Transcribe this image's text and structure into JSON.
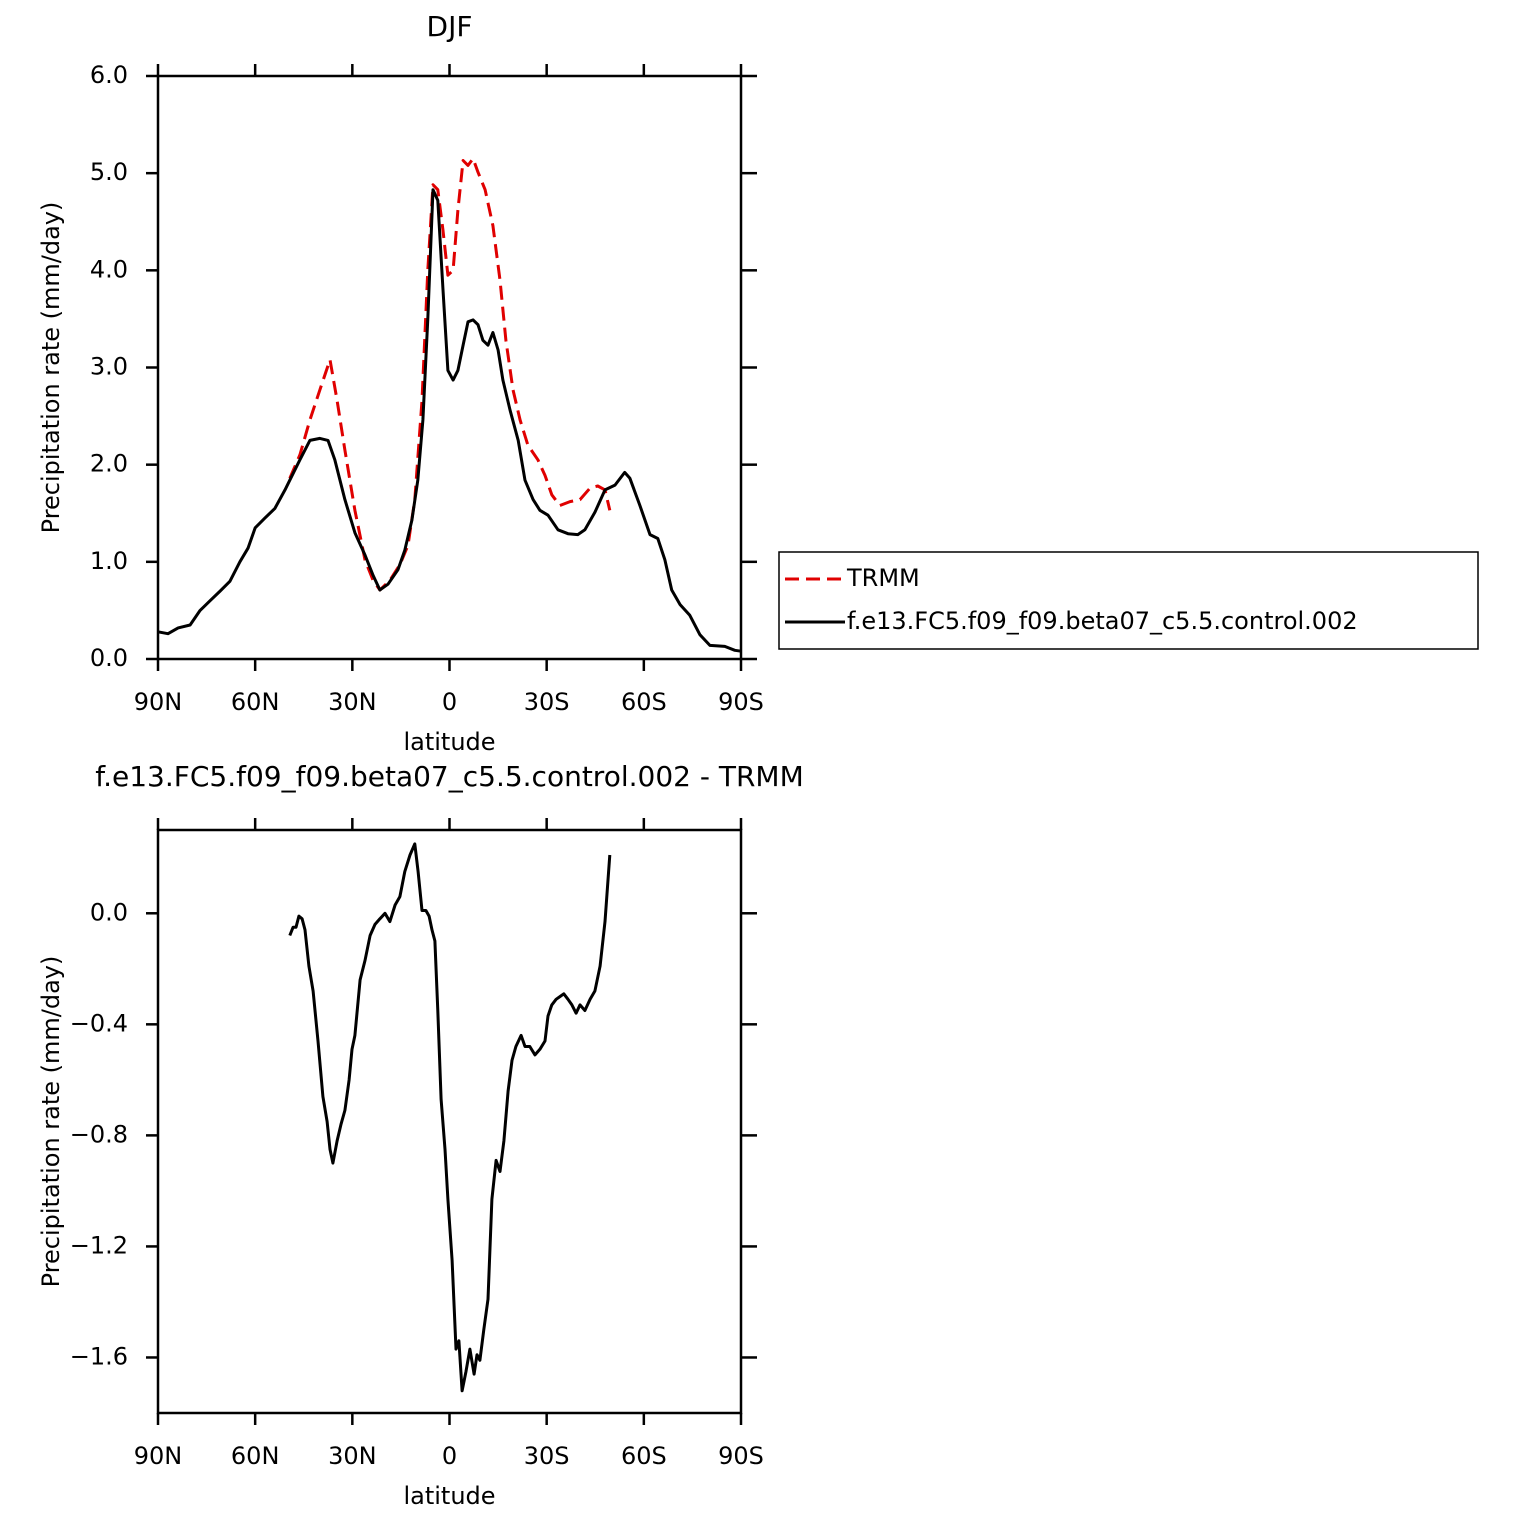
{
  "chart_data": [
    {
      "type": "line",
      "title": "DJF",
      "xlabel": "latitude",
      "ylabel": "Precipitation rate (mm/day)",
      "xlim": [
        90,
        -90
      ],
      "xticks": [
        {
          "value": 90,
          "label": "90N"
        },
        {
          "value": 60,
          "label": "60N"
        },
        {
          "value": 30,
          "label": "30N"
        },
        0,
        {
          "value": -30,
          "label": "30S"
        },
        {
          "value": -60,
          "label": "60S"
        },
        {
          "value": -90,
          "label": "90S"
        }
      ],
      "ylim": [
        0,
        6
      ],
      "yticks": [
        {
          "value": 0,
          "label": "0.0"
        },
        {
          "value": 1,
          "label": "1.0"
        },
        {
          "value": 2,
          "label": "2.0"
        },
        {
          "value": 3,
          "label": "3.0"
        },
        {
          "value": 4,
          "label": "4.0"
        },
        {
          "value": 5,
          "label": "5.0"
        },
        {
          "value": 6,
          "label": "6.0"
        }
      ],
      "legend": "right",
      "series": [
        {
          "name": "TRMM",
          "color": "#e00000",
          "dashed": true,
          "x": [
            49.3,
            46.2,
            43.1,
            40.0,
            36.9,
            34.7,
            32.3,
            29.2,
            26.1,
            23.6,
            21.5,
            18.4,
            15.3,
            12.8,
            10.7,
            8.5,
            6.7,
            5.1,
            3.6,
            2.0,
            0.5,
            -1.1,
            -2.6,
            -4.2,
            -5.7,
            -7.3,
            -8.8,
            -11.0,
            -13.4,
            -15.6,
            -17.4,
            -19.6,
            -21.8,
            -24.2,
            -27.3,
            -29.5,
            -31.6,
            -34.1,
            -37.2,
            -40.3,
            -43.4,
            -45.8,
            -48.0,
            -49.5
          ],
          "values": [
            1.86,
            2.1,
            2.46,
            2.77,
            3.08,
            2.66,
            2.15,
            1.53,
            1.02,
            0.81,
            0.71,
            0.81,
            0.97,
            1.17,
            1.64,
            2.66,
            4.0,
            4.88,
            4.83,
            4.41,
            3.95,
            4.0,
            4.62,
            5.13,
            5.08,
            5.15,
            5.01,
            4.83,
            4.46,
            3.9,
            3.28,
            2.77,
            2.46,
            2.2,
            2.05,
            1.89,
            1.69,
            1.58,
            1.62,
            1.64,
            1.76,
            1.78,
            1.74,
            1.53
          ]
        },
        {
          "name": "f.e13.FC5.f09_f09.beta07_c5.5.control.002",
          "color": "#000000",
          "dashed": false,
          "x": [
            90,
            86.9,
            83.8,
            80.1,
            77.0,
            73.9,
            70.8,
            67.8,
            64.7,
            62.2,
            60.0,
            57.0,
            53.9,
            50.8,
            49.3,
            46.2,
            43.1,
            40.0,
            37.5,
            35.4,
            32.3,
            29.2,
            26.1,
            23.6,
            21.5,
            19.0,
            15.9,
            13.8,
            11.6,
            9.8,
            8.2,
            6.7,
            5.1,
            3.6,
            2.0,
            0.5,
            -1.1,
            -2.6,
            -4.2,
            -5.7,
            -7.3,
            -8.8,
            -10.3,
            -11.9,
            -13.4,
            -15.0,
            -16.5,
            -18.7,
            -21.2,
            -23.3,
            -25.8,
            -27.9,
            -30.4,
            -33.5,
            -36.6,
            -39.6,
            -41.8,
            -44.9,
            -48.0,
            -51.1,
            -54.1,
            -55.7,
            -58.8,
            -61.9,
            -64.3,
            -66.5,
            -68.6,
            -71.2,
            -74.2,
            -77.3,
            -80.4,
            -85.0,
            -88.1,
            -90
          ],
          "values": [
            0.28,
            0.26,
            0.32,
            0.35,
            0.5,
            0.6,
            0.7,
            0.8,
            1.0,
            1.14,
            1.35,
            1.45,
            1.55,
            1.74,
            1.84,
            2.05,
            2.25,
            2.27,
            2.25,
            2.05,
            1.64,
            1.3,
            1.07,
            0.86,
            0.71,
            0.77,
            0.92,
            1.12,
            1.43,
            1.84,
            2.46,
            3.5,
            4.83,
            4.72,
            3.8,
            2.97,
            2.87,
            2.97,
            3.23,
            3.47,
            3.49,
            3.44,
            3.28,
            3.23,
            3.36,
            3.18,
            2.87,
            2.56,
            2.25,
            1.84,
            1.64,
            1.53,
            1.48,
            1.33,
            1.29,
            1.28,
            1.33,
            1.51,
            1.74,
            1.79,
            1.92,
            1.86,
            1.58,
            1.28,
            1.24,
            1.02,
            0.71,
            0.56,
            0.45,
            0.25,
            0.14,
            0.13,
            0.09,
            0.08
          ]
        }
      ]
    },
    {
      "type": "line",
      "title": "f.e13.FC5.f09_f09.beta07_c5.5.control.002 - TRMM",
      "xlabel": "latitude",
      "ylabel": "Precipitation rate (mm/day)",
      "xlim": [
        90,
        -90
      ],
      "xticks": [
        {
          "value": 90,
          "label": "90N"
        },
        {
          "value": 60,
          "label": "60N"
        },
        {
          "value": 30,
          "label": "30N"
        },
        0,
        {
          "value": -30,
          "label": "30S"
        },
        {
          "value": -60,
          "label": "60S"
        },
        {
          "value": -90,
          "label": "90S"
        }
      ],
      "ylim": [
        -1.8,
        0.3
      ],
      "yticks": [
        {
          "value": 0,
          "label": "0.0"
        },
        {
          "value": -0.4,
          "label": "−0.4"
        },
        {
          "value": -0.8,
          "label": "−0.8"
        },
        {
          "value": -1.2,
          "label": "−1.2"
        },
        {
          "value": -1.6,
          "label": "−1.6"
        }
      ],
      "series": [
        {
          "color": "#000000",
          "dashed": false,
          "x": [
            49.3,
            48.3,
            47.4,
            46.5,
            45.5,
            44.6,
            43.4,
            42.1,
            40.6,
            39.1,
            37.8,
            36.9,
            36.0,
            34.7,
            33.5,
            32.3,
            31.0,
            30.1,
            29.2,
            27.6,
            26.1,
            24.5,
            23.0,
            21.5,
            19.9,
            18.4,
            16.8,
            15.3,
            13.8,
            12.2,
            10.7,
            9.7,
            8.5,
            7.3,
            6.3,
            5.4,
            4.5,
            3.6,
            2.6,
            1.4,
            0.5,
            -0.8,
            -2.0,
            -2.9,
            -3.9,
            -5.1,
            -6.3,
            -7.6,
            -8.5,
            -9.4,
            -10.6,
            -11.9,
            -13.1,
            -14.4,
            -15.6,
            -16.8,
            -18.1,
            -19.3,
            -20.5,
            -22.1,
            -23.3,
            -24.8,
            -26.4,
            -27.9,
            -29.5,
            -30.4,
            -31.6,
            -32.9,
            -34.1,
            -35.3,
            -36.6,
            -37.8,
            -39.1,
            -40.3,
            -41.8,
            -43.4,
            -44.9,
            -46.5,
            -48.0,
            -49.5
          ],
          "values": [
            -0.08,
            -0.05,
            -0.05,
            -0.01,
            -0.02,
            -0.06,
            -0.19,
            -0.28,
            -0.46,
            -0.66,
            -0.75,
            -0.85,
            -0.9,
            -0.82,
            -0.76,
            -0.71,
            -0.6,
            -0.49,
            -0.44,
            -0.24,
            -0.17,
            -0.08,
            -0.04,
            -0.02,
            0.0,
            -0.03,
            0.03,
            0.06,
            0.15,
            0.21,
            0.25,
            0.15,
            0.01,
            0.01,
            -0.01,
            -0.06,
            -0.1,
            -0.35,
            -0.67,
            -0.85,
            -1.03,
            -1.25,
            -1.57,
            -1.54,
            -1.72,
            -1.65,
            -1.57,
            -1.66,
            -1.59,
            -1.61,
            -1.5,
            -1.39,
            -1.03,
            -0.89,
            -0.93,
            -0.82,
            -0.64,
            -0.53,
            -0.48,
            -0.44,
            -0.48,
            -0.48,
            -0.51,
            -0.49,
            -0.46,
            -0.37,
            -0.33,
            -0.31,
            -0.3,
            -0.29,
            -0.31,
            -0.33,
            -0.36,
            -0.33,
            -0.35,
            -0.31,
            -0.28,
            -0.19,
            -0.03,
            0.21
          ]
        }
      ]
    }
  ]
}
